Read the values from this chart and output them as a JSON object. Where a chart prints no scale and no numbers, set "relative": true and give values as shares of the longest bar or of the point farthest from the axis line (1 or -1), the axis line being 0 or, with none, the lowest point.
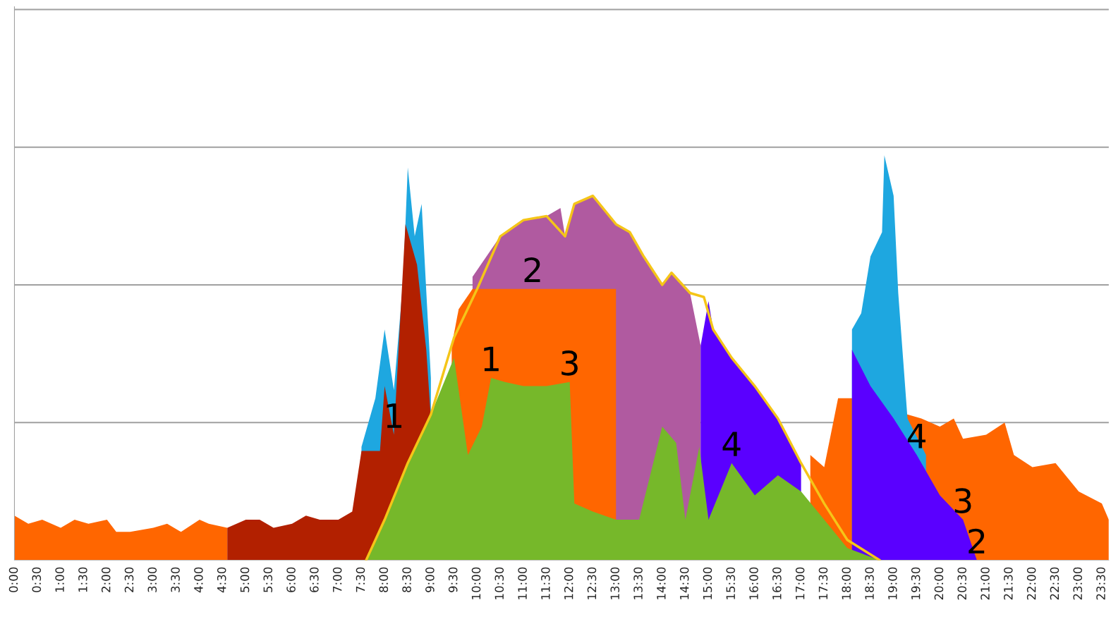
{
  "chart_data": {
    "type": "area",
    "relative": true,
    "legend": false,
    "xlim": [
      0,
      23.65
    ],
    "xticks": [
      {
        "value": 0,
        "label": "0:00"
      },
      {
        "value": 0.5,
        "label": "0:30"
      },
      {
        "value": 1,
        "label": "1:00"
      },
      {
        "value": 1.5,
        "label": "1:30"
      },
      {
        "value": 2,
        "label": "2:00"
      },
      {
        "value": 2.5,
        "label": "2:30"
      },
      {
        "value": 3,
        "label": "3:00"
      },
      {
        "value": 3.5,
        "label": "3:30"
      },
      {
        "value": 4,
        "label": "4:00"
      },
      {
        "value": 4.5,
        "label": "4:30"
      },
      {
        "value": 5,
        "label": "5:00"
      },
      {
        "value": 5.5,
        "label": "5:30"
      },
      {
        "value": 6,
        "label": "6:00"
      },
      {
        "value": 6.5,
        "label": "6:30"
      },
      {
        "value": 7,
        "label": "7:00"
      },
      {
        "value": 7.5,
        "label": "7:30"
      },
      {
        "value": 8,
        "label": "8:00"
      },
      {
        "value": 8.5,
        "label": "8:30"
      },
      {
        "value": 9,
        "label": "9:00"
      },
      {
        "value": 9.5,
        "label": "9:30"
      },
      {
        "value": 10,
        "label": "10:00"
      },
      {
        "value": 10.5,
        "label": "10:30"
      },
      {
        "value": 11,
        "label": "11:00"
      },
      {
        "value": 11.5,
        "label": "11:30"
      },
      {
        "value": 12,
        "label": "12:00"
      },
      {
        "value": 12.5,
        "label": "12:30"
      },
      {
        "value": 13,
        "label": "13:00"
      },
      {
        "value": 13.5,
        "label": "13:30"
      },
      {
        "value": 14,
        "label": "14:00"
      },
      {
        "value": 14.5,
        "label": "14:30"
      },
      {
        "value": 15,
        "label": "15:00"
      },
      {
        "value": 15.5,
        "label": "15:30"
      },
      {
        "value": 16,
        "label": "16:00"
      },
      {
        "value": 16.5,
        "label": "16:30"
      },
      {
        "value": 17,
        "label": "17:00"
      },
      {
        "value": 17.5,
        "label": "17:30"
      },
      {
        "value": 18,
        "label": "18:00"
      },
      {
        "value": 18.5,
        "label": "18:30"
      },
      {
        "value": 19,
        "label": "19:00"
      },
      {
        "value": 19.5,
        "label": "19:30"
      },
      {
        "value": 20,
        "label": "20:00"
      },
      {
        "value": 20.5,
        "label": "20:30"
      },
      {
        "value": 21,
        "label": "21:00"
      },
      {
        "value": 21.5,
        "label": "21:30"
      },
      {
        "value": 22,
        "label": "22:00"
      },
      {
        "value": 22.5,
        "label": "22:30"
      },
      {
        "value": 23,
        "label": "23:00"
      },
      {
        "value": 23.5,
        "label": "23:30"
      }
    ],
    "series": [
      {
        "color": "#1ea7e0",
        "x": [
          7.5,
          7.8,
          8.0,
          8.2,
          8.4,
          8.5,
          8.65,
          8.8,
          9.0
        ],
        "values": [
          0.28,
          0.4,
          0.57,
          0.42,
          0.69,
          0.97,
          0.8,
          0.88,
          0.45
        ]
      },
      {
        "color": "#ff6600",
        "x": [
          0,
          0.3,
          0.6,
          1.0,
          1.3,
          1.6,
          2.0,
          2.2,
          2.5,
          3.0,
          3.3,
          3.6,
          4.0,
          4.2,
          4.6
        ],
        "values": [
          0.11,
          0.09,
          0.1,
          0.08,
          0.1,
          0.09,
          0.1,
          0.07,
          0.07,
          0.08,
          0.09,
          0.07,
          0.1,
          0.09,
          0.08
        ]
      },
      {
        "color": "#ff6600",
        "x": [
          17.2,
          17.5,
          17.8,
          18.1,
          19.6,
          20.0,
          20.3,
          20.5,
          21.0,
          21.4,
          21.6,
          22.0,
          22.5,
          23.0,
          23.5,
          23.65
        ],
        "values": [
          0.26,
          0.23,
          0.4,
          0.4,
          0.35,
          0.33,
          0.35,
          0.3,
          0.31,
          0.34,
          0.26,
          0.23,
          0.24,
          0.17,
          0.14,
          0.1
        ]
      },
      {
        "color": "#1ea7e0",
        "x": [
          18.1,
          18.3,
          18.5,
          18.75,
          18.8,
          19.0,
          19.1,
          19.3,
          19.7
        ],
        "values": [
          0.57,
          0.61,
          0.75,
          0.81,
          1.0,
          0.9,
          0.66,
          0.35,
          0.26
        ]
      },
      {
        "color": "#b22000",
        "x": [
          4.6,
          5.0,
          5.3,
          5.6,
          6.0,
          6.3,
          6.6,
          7.0,
          7.3,
          7.5,
          7.9,
          8.0,
          8.2,
          8.45,
          8.7,
          8.9,
          9.0
        ],
        "values": [
          0.08,
          0.1,
          0.1,
          0.08,
          0.09,
          0.11,
          0.1,
          0.1,
          0.12,
          0.27,
          0.27,
          0.43,
          0.31,
          0.83,
          0.73,
          0.52,
          0.35
        ]
      },
      {
        "color": "#b05aa0",
        "x": [
          9.9,
          10.5,
          11.0,
          11.5,
          11.8,
          11.9,
          12.1,
          12.5,
          13.0,
          13.3,
          13.6,
          14.0,
          14.2,
          14.6,
          14.83
        ],
        "values": [
          0.7,
          0.8,
          0.84,
          0.85,
          0.87,
          0.8,
          0.88,
          0.9,
          0.83,
          0.81,
          0.75,
          0.68,
          0.71,
          0.66,
          0.53
        ]
      },
      {
        "color": "#ff6600",
        "x": [
          9.45,
          9.6,
          9.9,
          11.2,
          13.0
        ],
        "values": [
          0.53,
          0.62,
          0.67,
          0.67,
          0.67
        ]
      },
      {
        "color": "#5a00ff",
        "x": [
          14.83,
          15.0,
          15.1,
          15.5,
          16.0,
          16.5,
          17.0
        ],
        "values": [
          0.53,
          0.64,
          0.57,
          0.5,
          0.43,
          0.35,
          0.24
        ]
      },
      {
        "color": "#5a00ff",
        "x": [
          18.1,
          18.5,
          19.0,
          19.5,
          20.0,
          20.5,
          20.8
        ],
        "values": [
          0.52,
          0.43,
          0.35,
          0.26,
          0.16,
          0.1,
          0.0
        ]
      },
      {
        "color": "#76b82a",
        "x": [
          7.6,
          8.0,
          8.5,
          9.0,
          9.5,
          9.8,
          10.1,
          10.3,
          10.6,
          11.0,
          11.5,
          12.0,
          12.1,
          12.5,
          13.0,
          13.5,
          14.0,
          14.3,
          14.5,
          14.8,
          15.0,
          15.5,
          16.0,
          16.5,
          17.0,
          17.5,
          18.0,
          18.7
        ],
        "values": [
          0.0,
          0.1,
          0.24,
          0.36,
          0.5,
          0.26,
          0.33,
          0.45,
          0.44,
          0.43,
          0.43,
          0.44,
          0.14,
          0.12,
          0.1,
          0.1,
          0.33,
          0.29,
          0.1,
          0.28,
          0.1,
          0.24,
          0.16,
          0.21,
          0.17,
          0.1,
          0.03,
          0.0
        ]
      },
      {
        "type": "line",
        "color": "#f5c518",
        "x": [
          7.6,
          8.0,
          8.5,
          9.0,
          9.5,
          10.0,
          10.5,
          11.0,
          11.5,
          11.9,
          12.1,
          12.5,
          13.0,
          13.3,
          13.6,
          14.0,
          14.2,
          14.6,
          14.9,
          15.1,
          15.5,
          16.0,
          16.5,
          17.0,
          17.5,
          18.0,
          18.7
        ],
        "values": [
          0.0,
          0.1,
          0.24,
          0.36,
          0.55,
          0.67,
          0.8,
          0.84,
          0.85,
          0.8,
          0.88,
          0.9,
          0.83,
          0.81,
          0.75,
          0.68,
          0.71,
          0.66,
          0.65,
          0.57,
          0.5,
          0.43,
          0.35,
          0.24,
          0.14,
          0.05,
          0.0
        ]
      }
    ],
    "annotations": [
      {
        "text": "1",
        "x": 8.2,
        "y": 0.31
      },
      {
        "text": "1",
        "x": 10.3,
        "y": 0.45
      },
      {
        "text": "2",
        "x": 11.2,
        "y": 0.67
      },
      {
        "text": "3",
        "x": 12.0,
        "y": 0.44
      },
      {
        "text": "4",
        "x": 15.5,
        "y": 0.24
      },
      {
        "text": "4",
        "x": 19.5,
        "y": 0.26
      },
      {
        "text": "3",
        "x": 20.5,
        "y": 0.1
      },
      {
        "text": "2",
        "x": 20.8,
        "y": 0.0
      }
    ],
    "ref_lines": [
      {
        "axis": "y",
        "value": 0.34,
        "color": "#a0a0a0"
      },
      {
        "axis": "y",
        "value": 0.68,
        "color": "#a0a0a0"
      },
      {
        "axis": "y",
        "value": 1.02,
        "color": "#a0a0a0"
      },
      {
        "axis": "y",
        "value": 1.36,
        "color": "#a0a0a0"
      }
    ]
  }
}
